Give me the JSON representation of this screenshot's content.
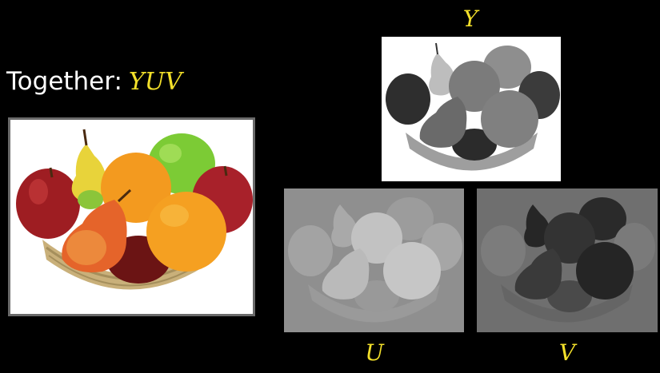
{
  "heading": {
    "prefix": "Together:",
    "highlight": "YUV"
  },
  "channel_labels": {
    "y": "Y",
    "u": "U",
    "v": "V"
  },
  "colors": {
    "background": "#000000",
    "heading_text": "#ffffff",
    "label_yellow": "#f2df2a",
    "frame_gray": "#6a6a6a"
  },
  "images": {
    "main": "full-color fruit basket photo",
    "y": "luminance channel",
    "u": "blue-difference chroma channel",
    "v": "red-difference chroma channel"
  }
}
